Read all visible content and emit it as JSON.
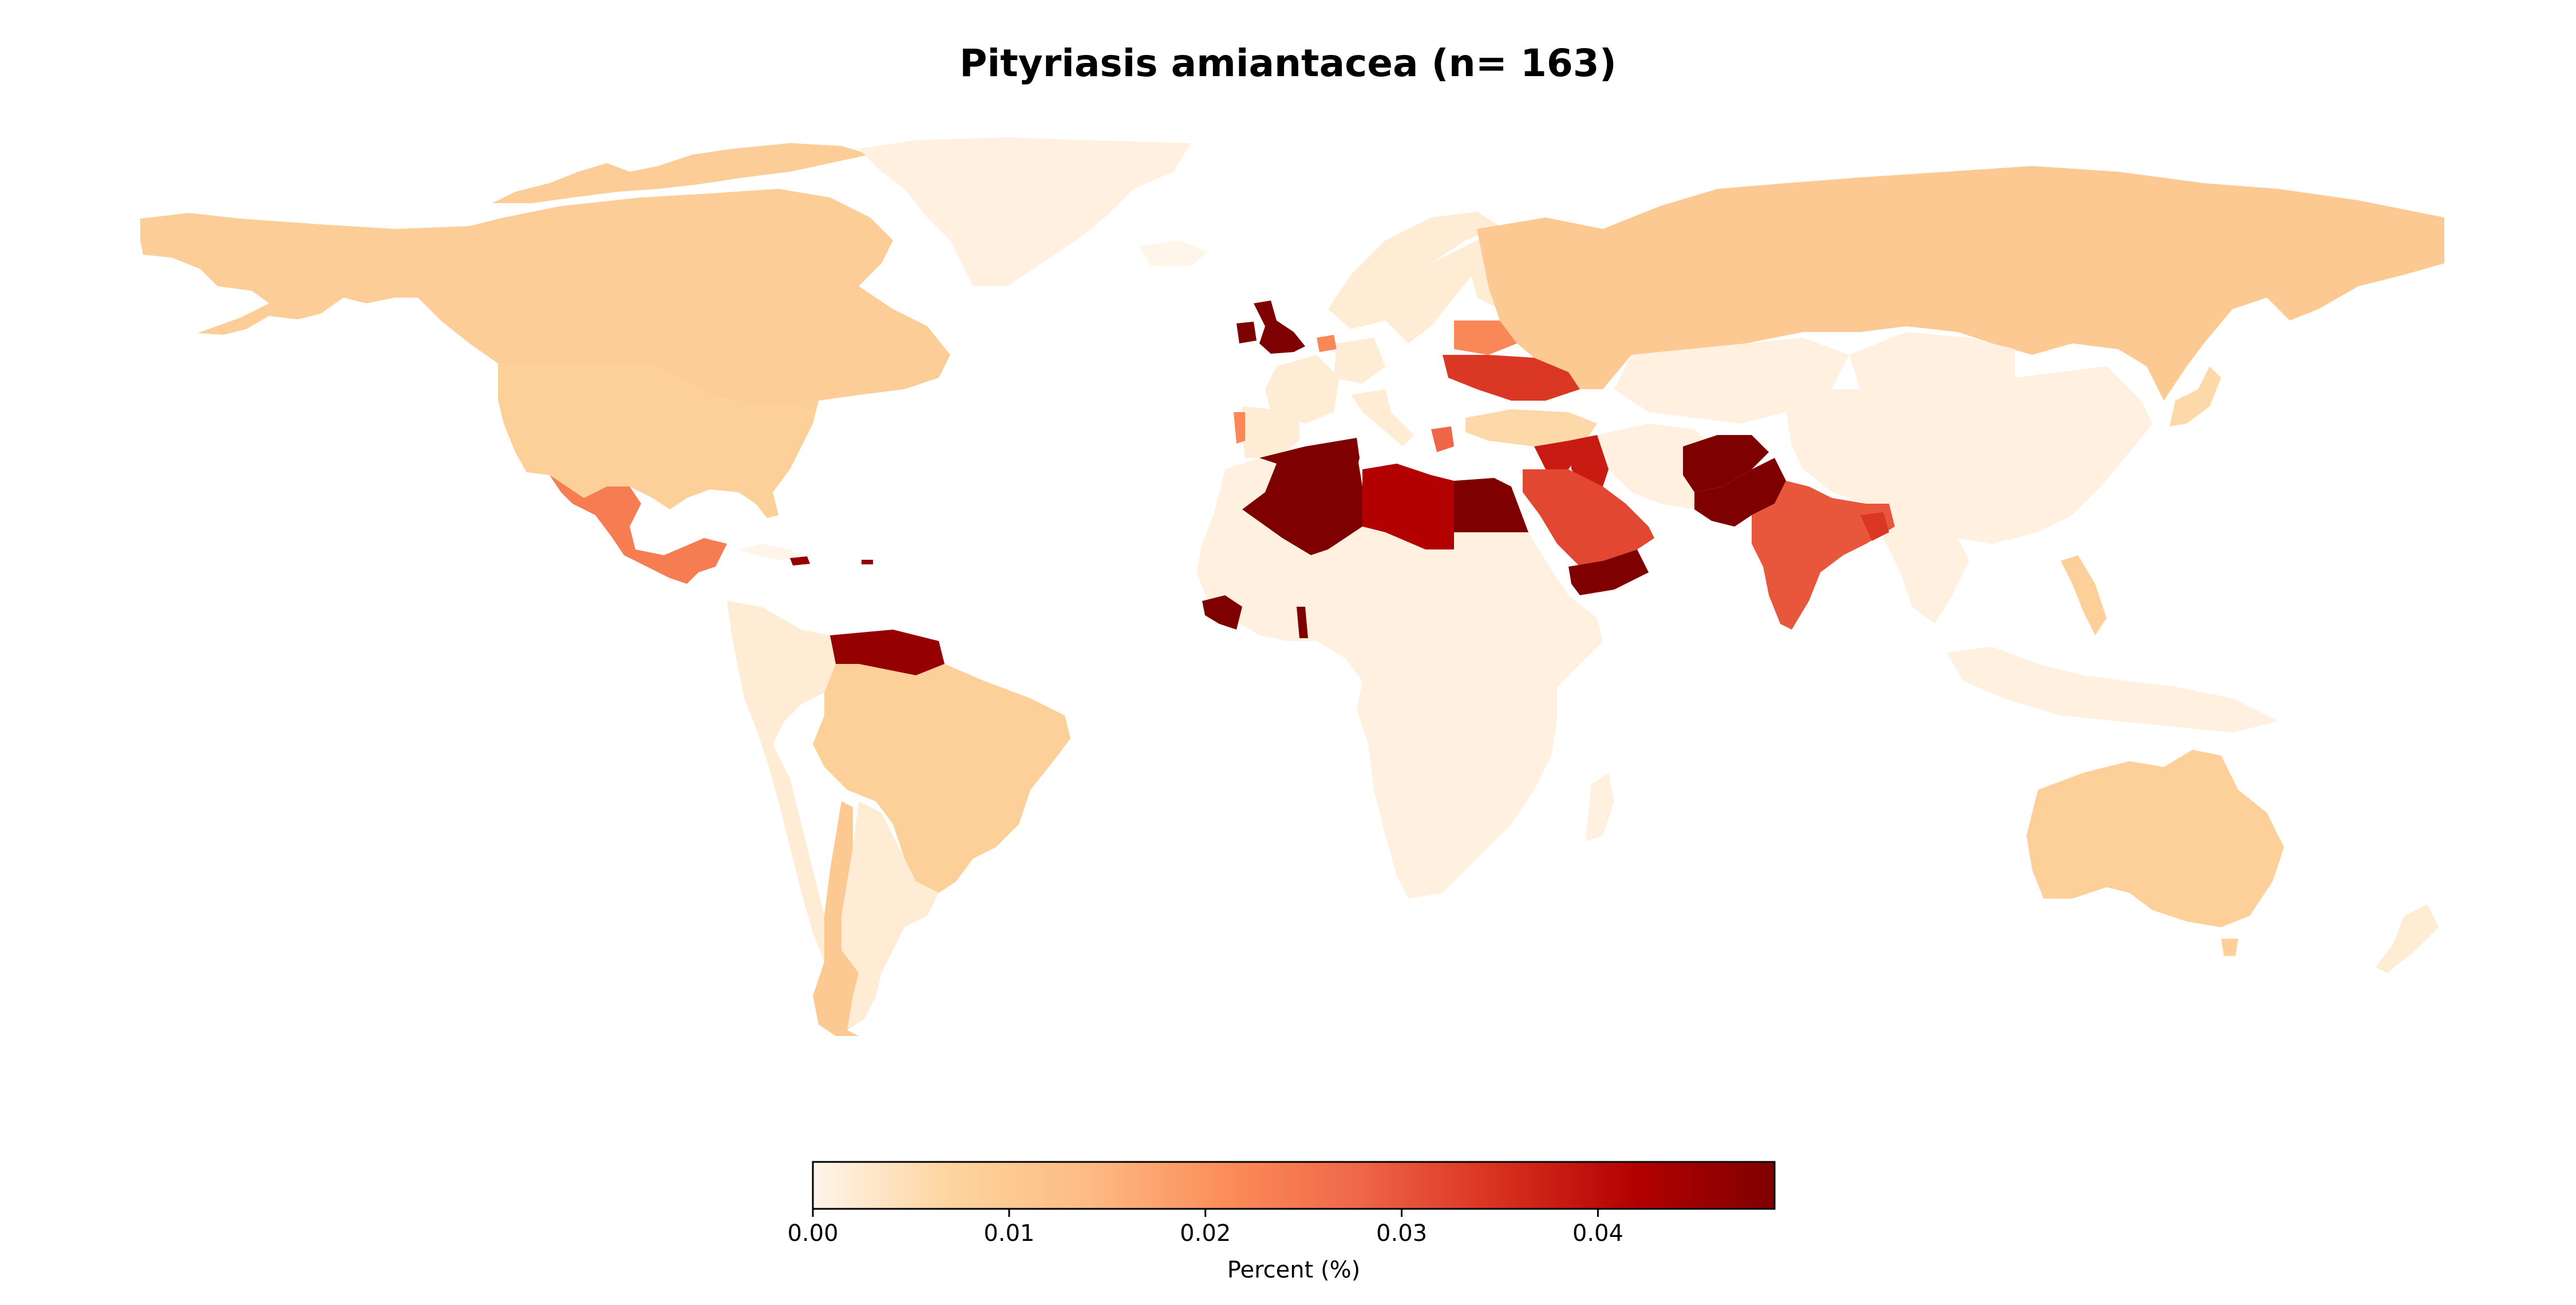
{
  "title": "Pityriasis amiantacea (n= 163)",
  "colorbar": {
    "label": "Percent (%)",
    "ticks": [
      "0.00",
      "0.01",
      "0.02",
      "0.03",
      "0.04"
    ],
    "tick_values": [
      0,
      0.01,
      0.02,
      0.03,
      0.04
    ],
    "range": [
      0,
      0.049
    ],
    "colormap": [
      "#fff5eb",
      "#fdd49e",
      "#fdbb84",
      "#fc8d59",
      "#ef6548",
      "#d7301f",
      "#b30000",
      "#7f0000"
    ]
  },
  "map_data": {
    "type": "choropleth",
    "value_unit": "Percent (%)",
    "no_data_color": "#ffffff",
    "regions": [
      {
        "name": "Canada",
        "value": 0.009
      },
      {
        "name": "Alaska",
        "value": 0.009
      },
      {
        "name": "United States",
        "value": 0.008
      },
      {
        "name": "Greenland",
        "value": 0.001
      },
      {
        "name": "Mexico",
        "value": 0.024
      },
      {
        "name": "Cuba",
        "value": 0.0
      },
      {
        "name": "Dominican Republic",
        "value": 0.046
      },
      {
        "name": "Puerto Rico",
        "value": 0.046
      },
      {
        "name": "Venezuela",
        "value": 0.046
      },
      {
        "name": "Colombia",
        "value": 0.002
      },
      {
        "name": "Brazil",
        "value": 0.008
      },
      {
        "name": "Peru",
        "value": 0.002
      },
      {
        "name": "Argentina",
        "value": 0.002
      },
      {
        "name": "Chile",
        "value": 0.01
      },
      {
        "name": "United Kingdom",
        "value": 0.049
      },
      {
        "name": "Ireland",
        "value": 0.049
      },
      {
        "name": "Iceland",
        "value": 0.0
      },
      {
        "name": "Portugal",
        "value": 0.022
      },
      {
        "name": "Spain",
        "value": 0.002
      },
      {
        "name": "France",
        "value": 0.002
      },
      {
        "name": "Netherlands",
        "value": 0.022
      },
      {
        "name": "Norway",
        "value": 0.002
      },
      {
        "name": "Sweden",
        "value": 0.002
      },
      {
        "name": "Finland",
        "value": 0.002
      },
      {
        "name": "Germany",
        "value": 0.002
      },
      {
        "name": "Italy",
        "value": 0.002
      },
      {
        "name": "Greece",
        "value": 0.028
      },
      {
        "name": "Belarus",
        "value": 0.022
      },
      {
        "name": "Ukraine",
        "value": 0.034
      },
      {
        "name": "Turkey",
        "value": 0.006
      },
      {
        "name": "Russia",
        "value": 0.01
      },
      {
        "name": "Kazakhstan",
        "value": 0.001
      },
      {
        "name": "Mongolia",
        "value": 0.001
      },
      {
        "name": "China",
        "value": 0.001
      },
      {
        "name": "Japan",
        "value": 0.006
      },
      {
        "name": "Morocco",
        "value": 0.001
      },
      {
        "name": "Algeria",
        "value": 0.049
      },
      {
        "name": "Tunisia",
        "value": 0.049
      },
      {
        "name": "Libya",
        "value": 0.042
      },
      {
        "name": "Egypt",
        "value": 0.049
      },
      {
        "name": "Syria",
        "value": 0.038
      },
      {
        "name": "Iraq",
        "value": 0.038
      },
      {
        "name": "Saudi Arabia",
        "value": 0.032
      },
      {
        "name": "Yemen",
        "value": 0.049
      },
      {
        "name": "Iran",
        "value": 0.001
      },
      {
        "name": "Afghanistan",
        "value": 0.049
      },
      {
        "name": "Pakistan",
        "value": 0.049
      },
      {
        "name": "India",
        "value": 0.03
      },
      {
        "name": "Bangladesh",
        "value": 0.034
      },
      {
        "name": "Sierra Leone",
        "value": 0.049
      },
      {
        "name": "Ghana",
        "value": 0.049
      },
      {
        "name": "Africa (rest)",
        "value": 0.001
      },
      {
        "name": "Madagascar",
        "value": 0.001
      },
      {
        "name": "Southeast Asia",
        "value": 0.001
      },
      {
        "name": "Philippines",
        "value": 0.008
      },
      {
        "name": "Indonesia",
        "value": 0.001
      },
      {
        "name": "Australia",
        "value": 0.008
      },
      {
        "name": "New Zealand",
        "value": 0.002
      }
    ]
  }
}
